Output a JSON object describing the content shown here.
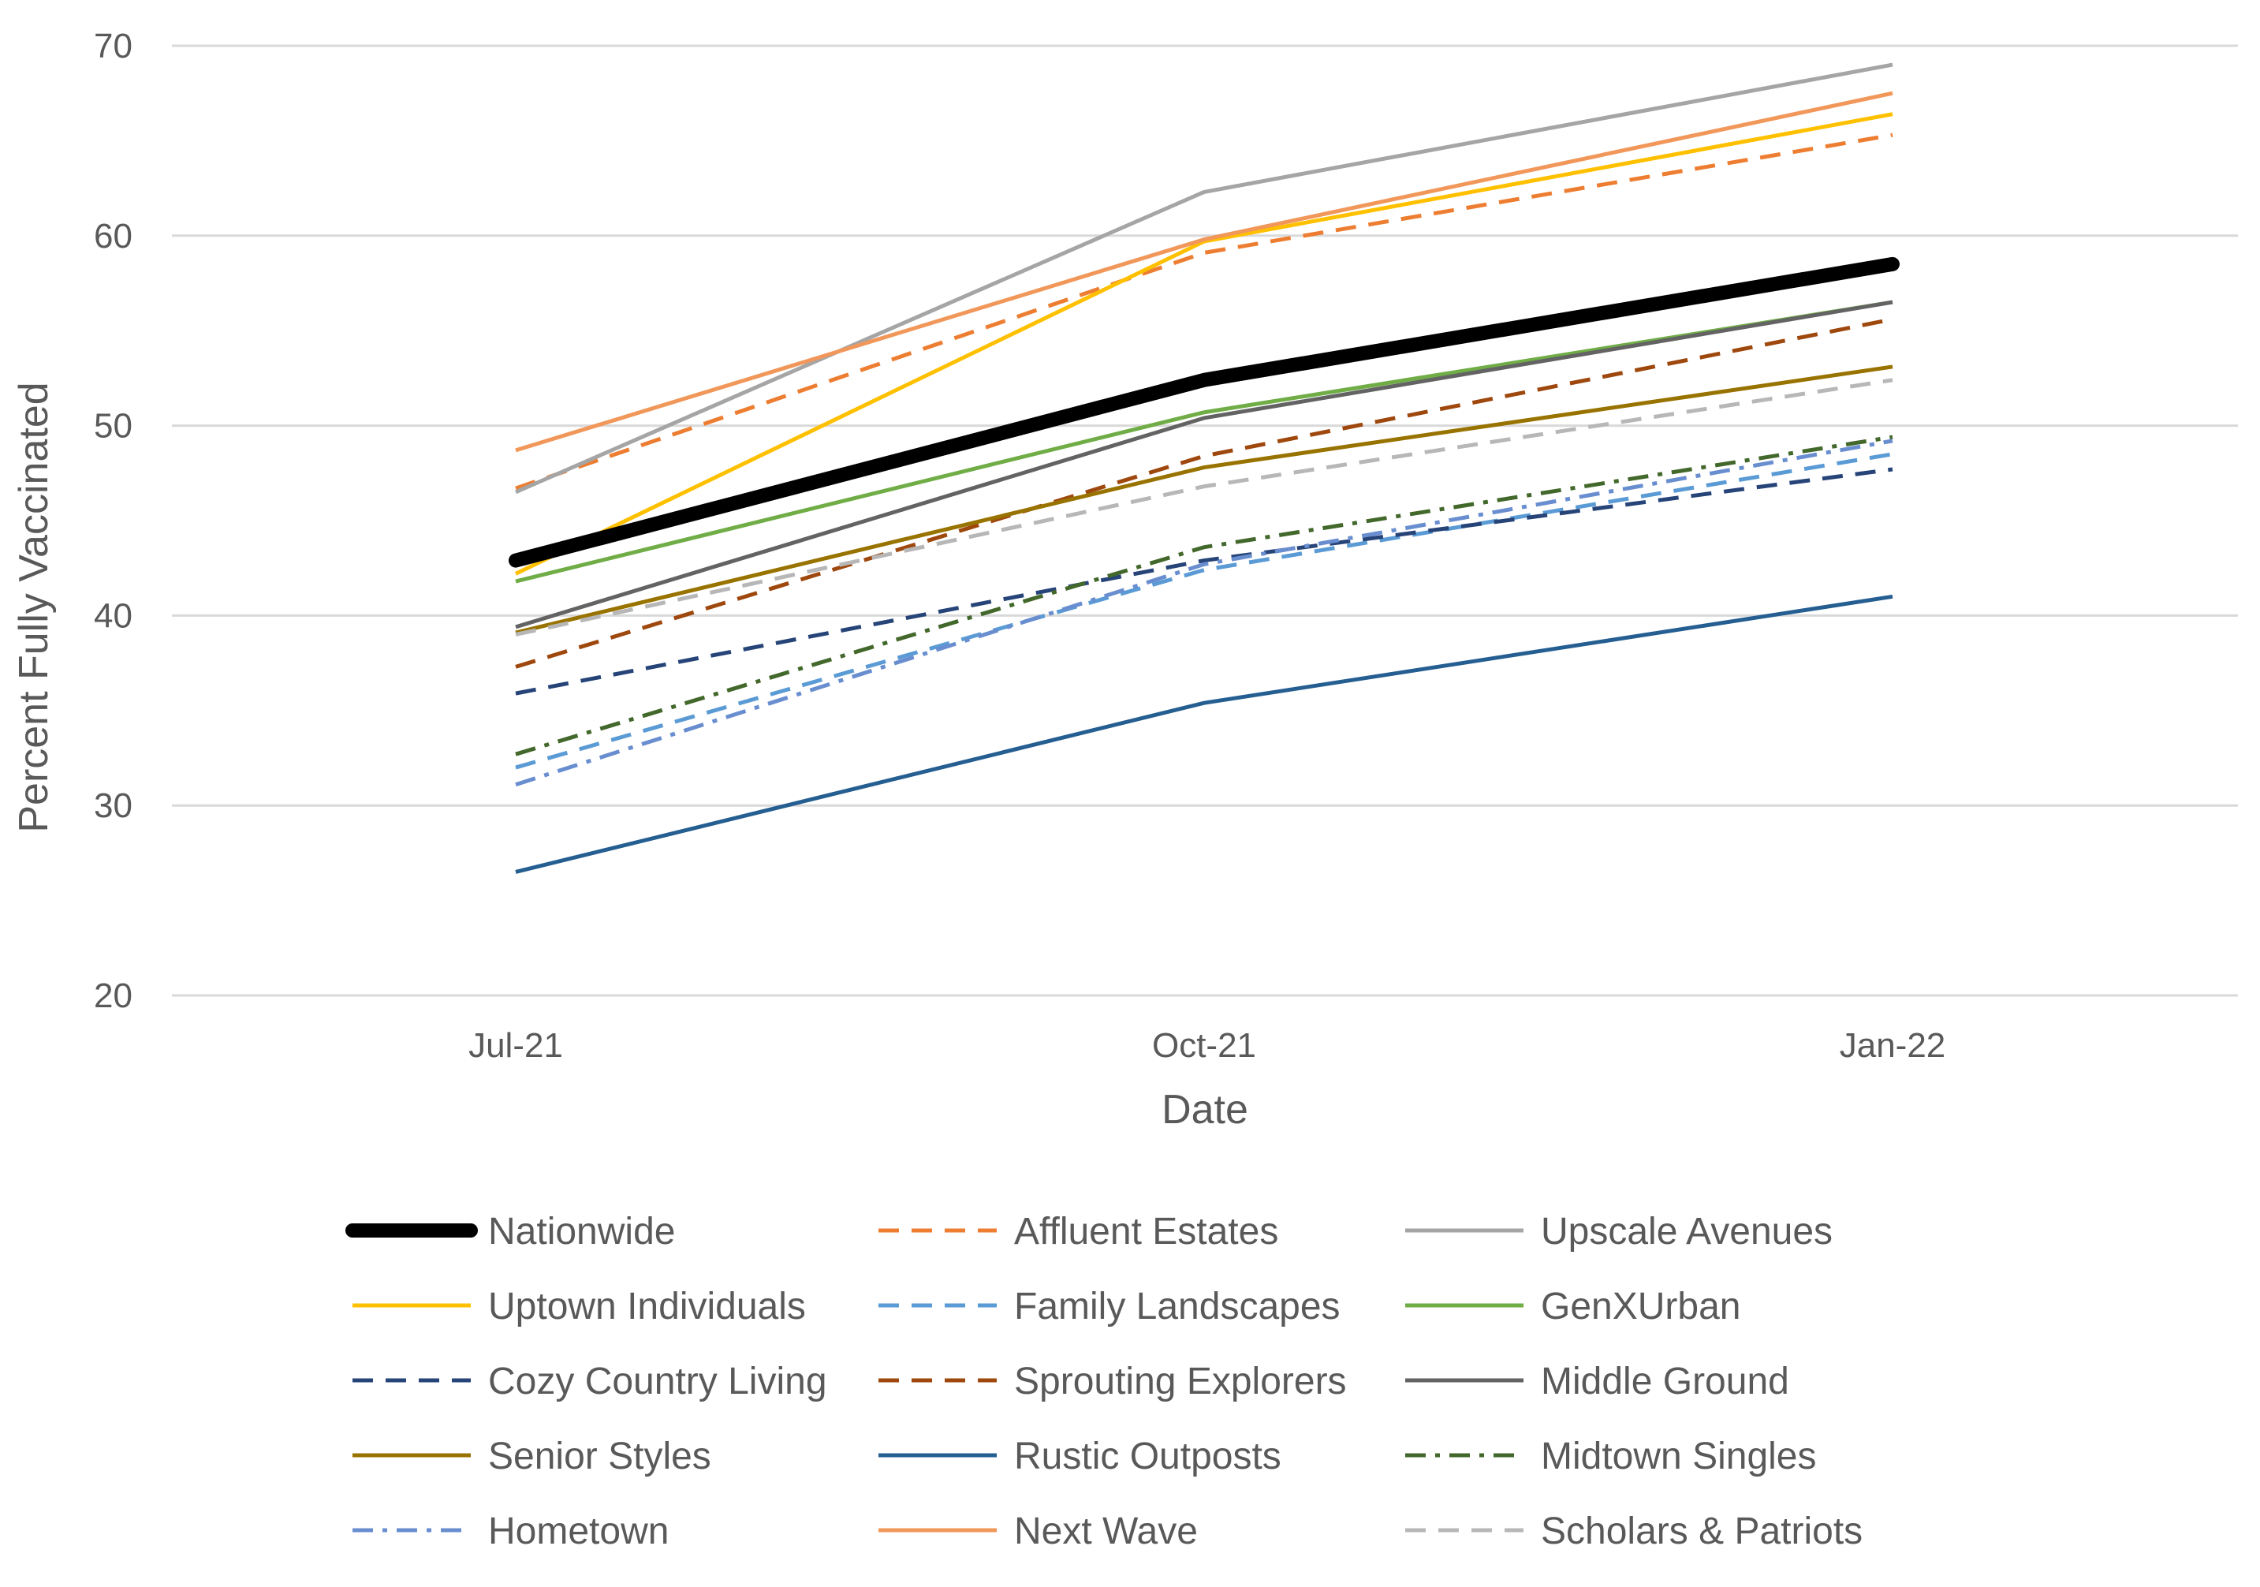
{
  "chart_data": {
    "type": "line",
    "title": "",
    "xlabel": "Date",
    "ylabel": "Percent Fully Vaccinated",
    "categories": [
      "Jul-21",
      "Oct-21",
      "Jan-22"
    ],
    "ylim": [
      20,
      70
    ],
    "yticks": [
      20,
      30,
      40,
      50,
      60,
      70
    ],
    "grid": "horizontal",
    "legend_position": "bottom",
    "series": [
      {
        "name": "Nationwide",
        "values": [
          42.9,
          52.4,
          58.5
        ],
        "color": "#000000",
        "style": "solid",
        "weight": "bold"
      },
      {
        "name": "Affluent Estates",
        "values": [
          46.7,
          59.1,
          65.3
        ],
        "color": "#ED7D31",
        "style": "dash"
      },
      {
        "name": "Upscale Avenues",
        "values": [
          46.5,
          62.3,
          69.0
        ],
        "color": "#A5A5A5",
        "style": "solid"
      },
      {
        "name": "Uptown Individuals",
        "values": [
          42.2,
          59.7,
          66.4
        ],
        "color": "#FFC000",
        "style": "solid"
      },
      {
        "name": "Family Landscapes",
        "values": [
          32.0,
          42.4,
          48.5
        ],
        "color": "#5B9BD5",
        "style": "dash"
      },
      {
        "name": "GenXUrban",
        "values": [
          41.8,
          50.7,
          56.5
        ],
        "color": "#70AD47",
        "style": "solid"
      },
      {
        "name": "Cozy Country Living",
        "values": [
          35.9,
          42.9,
          47.7
        ],
        "color": "#264478",
        "style": "dash"
      },
      {
        "name": "Sprouting Explorers",
        "values": [
          37.3,
          48.4,
          55.6
        ],
        "color": "#9E480E",
        "style": "dash"
      },
      {
        "name": "Middle Ground",
        "values": [
          39.4,
          50.4,
          56.5
        ],
        "color": "#636363",
        "style": "solid"
      },
      {
        "name": "Senior Styles",
        "values": [
          39.1,
          47.8,
          53.1
        ],
        "color": "#997300",
        "style": "solid"
      },
      {
        "name": "Rustic Outposts",
        "values": [
          26.5,
          35.4,
          41.0
        ],
        "color": "#255E91",
        "style": "solid"
      },
      {
        "name": "Midtown Singles",
        "values": [
          32.7,
          43.6,
          49.4
        ],
        "color": "#43682B",
        "style": "dashdot"
      },
      {
        "name": "Hometown",
        "values": [
          31.1,
          42.7,
          49.2
        ],
        "color": "#698ED0",
        "style": "dashdot"
      },
      {
        "name": "Next Wave",
        "values": [
          48.7,
          59.8,
          67.5
        ],
        "color": "#F1975A",
        "style": "solid"
      },
      {
        "name": "Scholars & Patriots",
        "values": [
          39.0,
          46.8,
          52.4
        ],
        "color": "#B7B7B7",
        "style": "dash"
      }
    ]
  }
}
